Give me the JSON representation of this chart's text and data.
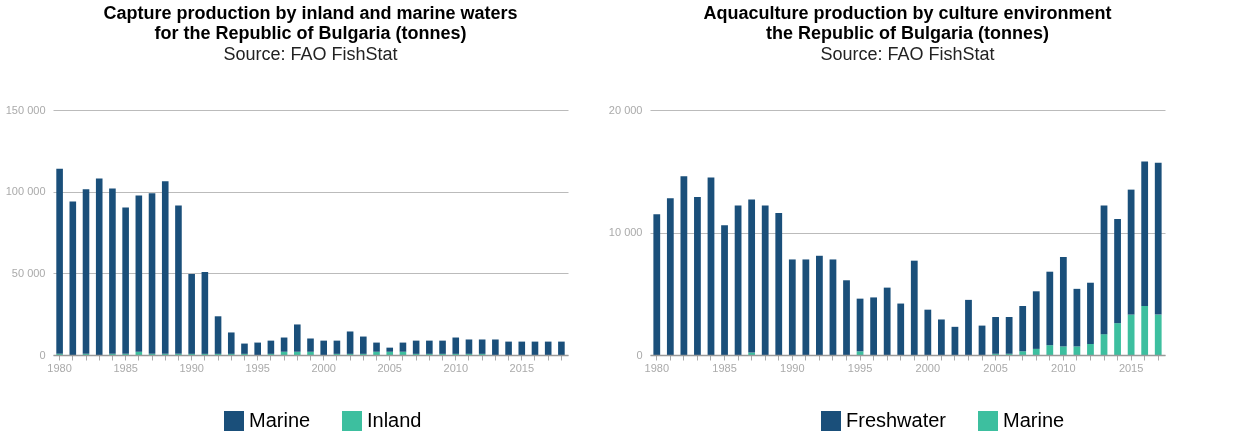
{
  "chart_data": [
    {
      "type": "bar",
      "stacked": true,
      "title": "Capture production by inland and marine waters\nfor the Republic of Bulgaria (tonnes)",
      "subtitle": "Source: FAO FishStat",
      "categories": [
        "1980",
        null,
        null,
        null,
        null,
        "1985",
        null,
        null,
        null,
        null,
        "1990",
        null,
        null,
        null,
        null,
        "1995",
        null,
        null,
        null,
        null,
        "2000",
        null,
        null,
        null,
        null,
        "2005",
        null,
        null,
        null,
        null,
        "2010",
        null,
        null,
        null,
        null,
        "2015",
        null,
        null,
        null
      ],
      "ylim": [
        0,
        150000
      ],
      "yticks": [
        0,
        {
          "value": 50000,
          "label": "50 000"
        },
        {
          "value": 100000,
          "label": "100 000"
        },
        {
          "value": 150000,
          "label": "150 000"
        }
      ],
      "grid": "y",
      "legend": "bottom",
      "series": [
        {
          "name": "Inland",
          "color": "#3dbf9f",
          "values": [
            700,
            0,
            700,
            0,
            700,
            700,
            2000,
            700,
            700,
            700,
            700,
            700,
            700,
            700,
            700,
            0,
            700,
            2000,
            2000,
            2000,
            0,
            700,
            700,
            700,
            2000,
            2000,
            2000,
            700,
            700,
            700,
            700,
            700,
            700,
            0,
            0,
            0,
            0,
            0,
            0
          ]
        },
        {
          "name": "Marine",
          "color": "#1a4f7a",
          "values": [
            113300,
            94000,
            100800,
            108000,
            101300,
            89600,
            95700,
            98300,
            105700,
            90900,
            48900,
            50100,
            23000,
            13100,
            6300,
            7600,
            8100,
            8700,
            16700,
            8100,
            8800,
            8100,
            13700,
            10600,
            5600,
            2500,
            5600,
            8100,
            8100,
            8100,
            10000,
            8800,
            8800,
            9500,
            8200,
            8200,
            8200,
            8200,
            8200
          ]
        }
      ]
    },
    {
      "type": "bar",
      "stacked": true,
      "title": "Aquaculture production by culture environment\nthe Republic of Bulgaria (tonnes)",
      "subtitle": "Source: FAO FishStat",
      "categories": [
        "1980",
        null,
        null,
        null,
        null,
        "1985",
        null,
        null,
        null,
        null,
        "1990",
        null,
        null,
        null,
        null,
        "1995",
        null,
        null,
        null,
        null,
        "2000",
        null,
        null,
        null,
        null,
        "2005",
        null,
        null,
        null,
        null,
        "2010",
        null,
        null,
        null,
        null,
        "2015",
        null,
        null
      ],
      "ylim": [
        0,
        20000
      ],
      "yticks": [
        0,
        {
          "value": 10000,
          "label": "10 000"
        },
        {
          "value": 20000,
          "label": "20 000"
        }
      ],
      "grid": "y",
      "legend": "bottom",
      "series": [
        {
          "name": "Marine",
          "color": "#3dbf9f",
          "values": [
            0,
            0,
            0,
            0,
            0,
            0,
            0,
            200,
            0,
            0,
            0,
            0,
            0,
            0,
            0,
            300,
            0,
            0,
            0,
            0,
            0,
            0,
            0,
            0,
            0,
            100,
            100,
            300,
            500,
            800,
            700,
            700,
            900,
            1700,
            2600,
            3300,
            4000,
            3300
          ]
        },
        {
          "name": "Freshwater",
          "color": "#1a4f7a",
          "values": [
            11500,
            12800,
            14600,
            12900,
            14500,
            10600,
            12200,
            12500,
            12200,
            11600,
            7800,
            7800,
            8100,
            7800,
            6100,
            4300,
            4700,
            5500,
            4200,
            7700,
            3700,
            2900,
            2300,
            4500,
            2400,
            3000,
            3000,
            3700,
            4700,
            6000,
            7300,
            4700,
            5000,
            10500,
            8500,
            10200,
            11800,
            12400
          ]
        }
      ]
    }
  ]
}
